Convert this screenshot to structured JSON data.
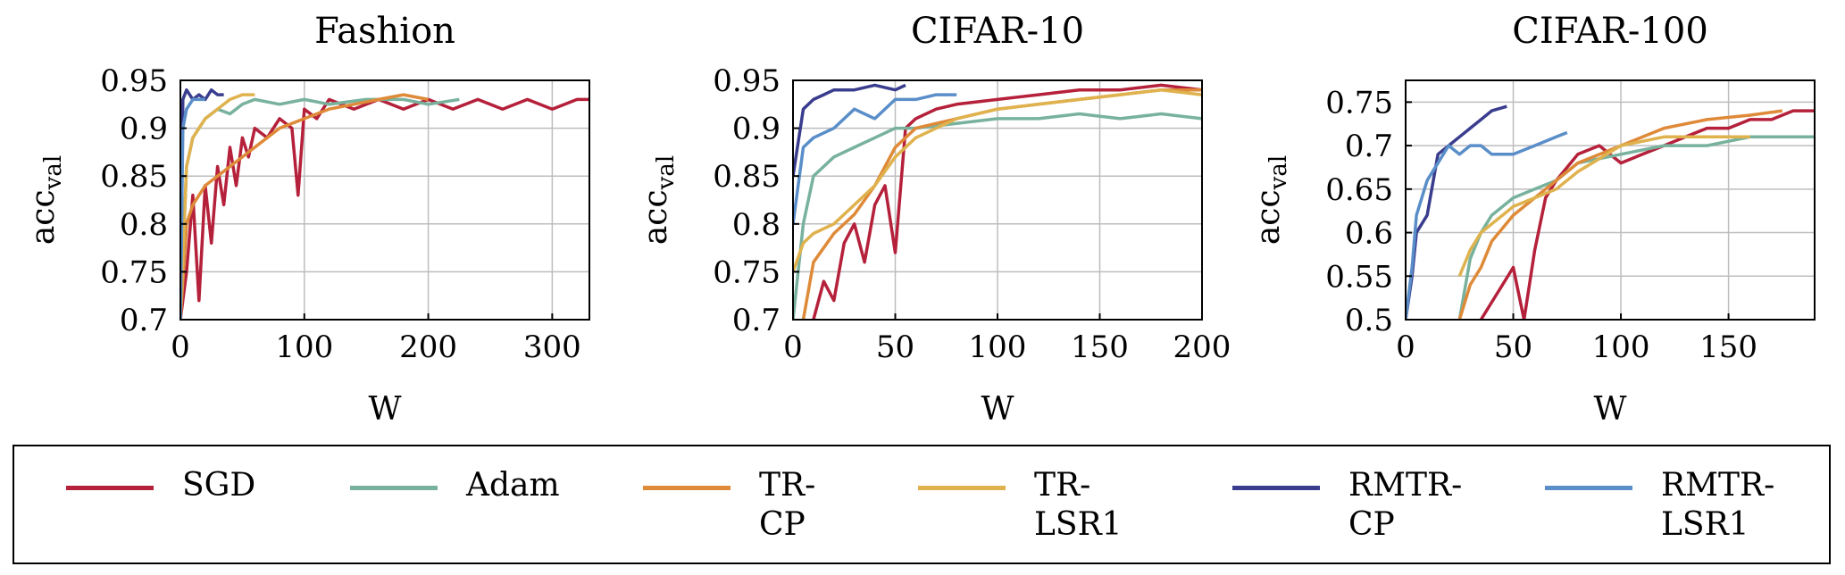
{
  "chart_data": [
    {
      "type": "line",
      "title": "Fashion",
      "xlabel": "W",
      "ylabel": "acc",
      "ylabel_sub": "val",
      "xlim": [
        0,
        330
      ],
      "ylim": [
        0.7,
        0.95
      ],
      "xticks": [
        0,
        100,
        200,
        300
      ],
      "yticks": [
        0.7,
        0.75,
        0.8,
        0.85,
        0.9,
        0.95
      ],
      "ytick_labels": [
        "0.7",
        "0.75",
        "0.8",
        "0.85",
        "0.9",
        "0.95"
      ],
      "grid": true,
      "series": [
        {
          "name": "SGD",
          "x": [
            0,
            5,
            10,
            15,
            20,
            25,
            30,
            35,
            40,
            45,
            50,
            55,
            60,
            70,
            80,
            90,
            95,
            100,
            110,
            120,
            140,
            160,
            180,
            200,
            220,
            240,
            260,
            280,
            300,
            320,
            330
          ],
          "y": [
            0.7,
            0.75,
            0.83,
            0.72,
            0.84,
            0.78,
            0.86,
            0.82,
            0.88,
            0.84,
            0.89,
            0.87,
            0.9,
            0.89,
            0.91,
            0.9,
            0.83,
            0.92,
            0.91,
            0.93,
            0.92,
            0.93,
            0.92,
            0.93,
            0.92,
            0.93,
            0.92,
            0.93,
            0.92,
            0.93,
            0.93
          ]
        },
        {
          "name": "Adam",
          "x": [
            0,
            5,
            10,
            20,
            30,
            40,
            50,
            60,
            80,
            100,
            120,
            150,
            180,
            200,
            225
          ],
          "y": [
            0.7,
            0.86,
            0.89,
            0.91,
            0.92,
            0.915,
            0.925,
            0.93,
            0.925,
            0.93,
            0.925,
            0.93,
            0.93,
            0.925,
            0.93
          ]
        },
        {
          "name": "TR-CP",
          "x": [
            0,
            5,
            10,
            20,
            30,
            40,
            50,
            60,
            80,
            100,
            120,
            140,
            160,
            180,
            200
          ],
          "y": [
            0.7,
            0.8,
            0.82,
            0.84,
            0.85,
            0.86,
            0.87,
            0.88,
            0.9,
            0.91,
            0.92,
            0.925,
            0.93,
            0.935,
            0.93
          ]
        },
        {
          "name": "TR-LSR1",
          "x": [
            0,
            5,
            10,
            15,
            20,
            30,
            40,
            50,
            60
          ],
          "y": [
            0.7,
            0.86,
            0.89,
            0.9,
            0.91,
            0.92,
            0.93,
            0.935,
            0.935
          ]
        },
        {
          "name": "RMTR-CP",
          "x": [
            0,
            2,
            5,
            10,
            15,
            20,
            25,
            30,
            35
          ],
          "y": [
            0.7,
            0.93,
            0.94,
            0.93,
            0.935,
            0.93,
            0.94,
            0.935,
            0.935
          ]
        },
        {
          "name": "RMTR-LSR1",
          "x": [
            0,
            2,
            5,
            10,
            15,
            20
          ],
          "y": [
            0.7,
            0.9,
            0.92,
            0.93,
            0.93,
            0.93
          ]
        }
      ]
    },
    {
      "type": "line",
      "title": "CIFAR-10",
      "xlabel": "W",
      "ylabel": "acc",
      "ylabel_sub": "val",
      "xlim": [
        0,
        200
      ],
      "ylim": [
        0.7,
        0.95
      ],
      "xticks": [
        0,
        50,
        100,
        150,
        200
      ],
      "yticks": [
        0.7,
        0.75,
        0.8,
        0.85,
        0.9,
        0.95
      ],
      "ytick_labels": [
        "0.7",
        "0.75",
        "0.8",
        "0.85",
        "0.9",
        "0.95"
      ],
      "grid": true,
      "series": [
        {
          "name": "SGD",
          "x": [
            10,
            15,
            20,
            25,
            30,
            35,
            40,
            45,
            50,
            55,
            60,
            70,
            80,
            100,
            120,
            140,
            160,
            180,
            200
          ],
          "y": [
            0.7,
            0.74,
            0.72,
            0.78,
            0.8,
            0.76,
            0.82,
            0.84,
            0.77,
            0.9,
            0.91,
            0.92,
            0.925,
            0.93,
            0.935,
            0.94,
            0.94,
            0.945,
            0.94
          ]
        },
        {
          "name": "Adam",
          "x": [
            0,
            5,
            10,
            15,
            20,
            30,
            40,
            50,
            60,
            80,
            100,
            120,
            140,
            160,
            180,
            200
          ],
          "y": [
            0.7,
            0.8,
            0.85,
            0.86,
            0.87,
            0.88,
            0.89,
            0.9,
            0.9,
            0.905,
            0.91,
            0.91,
            0.915,
            0.91,
            0.915,
            0.91
          ]
        },
        {
          "name": "TR-CP",
          "x": [
            5,
            10,
            20,
            30,
            40,
            50,
            60,
            80,
            100,
            120,
            140,
            160,
            180,
            200
          ],
          "y": [
            0.7,
            0.76,
            0.79,
            0.81,
            0.84,
            0.88,
            0.9,
            0.91,
            0.92,
            0.925,
            0.93,
            0.935,
            0.94,
            0.94
          ]
        },
        {
          "name": "TR-LSR1",
          "x": [
            0,
            5,
            10,
            20,
            30,
            40,
            50,
            60,
            80,
            100,
            120,
            140,
            160,
            180,
            200
          ],
          "y": [
            0.75,
            0.78,
            0.79,
            0.8,
            0.82,
            0.84,
            0.87,
            0.89,
            0.91,
            0.92,
            0.925,
            0.93,
            0.935,
            0.94,
            0.935
          ]
        },
        {
          "name": "RMTR-CP",
          "x": [
            0,
            5,
            10,
            15,
            20,
            30,
            40,
            50,
            55
          ],
          "y": [
            0.85,
            0.92,
            0.93,
            0.935,
            0.94,
            0.94,
            0.945,
            0.94,
            0.945
          ]
        },
        {
          "name": "RMTR-LSR1",
          "x": [
            0,
            5,
            10,
            20,
            30,
            40,
            50,
            60,
            70,
            80
          ],
          "y": [
            0.8,
            0.88,
            0.89,
            0.9,
            0.92,
            0.91,
            0.93,
            0.93,
            0.935,
            0.935
          ]
        }
      ]
    },
    {
      "type": "line",
      "title": "CIFAR-100",
      "xlabel": "W",
      "ylabel": "acc",
      "ylabel_sub": "val",
      "xlim": [
        0,
        190
      ],
      "ylim": [
        0.5,
        0.775
      ],
      "xticks": [
        0,
        50,
        100,
        150
      ],
      "yticks": [
        0.5,
        0.55,
        0.6,
        0.65,
        0.7,
        0.75
      ],
      "ytick_labels": [
        "0.5",
        "0.55",
        "0.6",
        "0.65",
        "0.7",
        "0.75"
      ],
      "grid": true,
      "series": [
        {
          "name": "SGD",
          "x": [
            35,
            40,
            45,
            50,
            55,
            60,
            65,
            70,
            80,
            90,
            100,
            110,
            120,
            130,
            140,
            150,
            160,
            170,
            180,
            190
          ],
          "y": [
            0.5,
            0.52,
            0.54,
            0.56,
            0.5,
            0.58,
            0.64,
            0.66,
            0.69,
            0.7,
            0.68,
            0.69,
            0.7,
            0.71,
            0.72,
            0.72,
            0.73,
            0.73,
            0.74,
            0.74
          ]
        },
        {
          "name": "Adam",
          "x": [
            25,
            30,
            35,
            40,
            50,
            60,
            70,
            80,
            100,
            120,
            140,
            160,
            180,
            190
          ],
          "y": [
            0.5,
            0.57,
            0.6,
            0.62,
            0.64,
            0.65,
            0.66,
            0.68,
            0.69,
            0.7,
            0.7,
            0.71,
            0.71,
            0.71
          ]
        },
        {
          "name": "TR-CP",
          "x": [
            25,
            30,
            35,
            40,
            50,
            60,
            70,
            80,
            100,
            120,
            140,
            160,
            175
          ],
          "y": [
            0.5,
            0.54,
            0.56,
            0.59,
            0.62,
            0.64,
            0.66,
            0.68,
            0.7,
            0.72,
            0.73,
            0.735,
            0.74
          ]
        },
        {
          "name": "TR-LSR1",
          "x": [
            25,
            30,
            35,
            40,
            45,
            50,
            60,
            70,
            80,
            100,
            120,
            140,
            160
          ],
          "y": [
            0.55,
            0.58,
            0.6,
            0.61,
            0.62,
            0.63,
            0.64,
            0.65,
            0.67,
            0.7,
            0.71,
            0.71,
            0.71
          ]
        },
        {
          "name": "RMTR-CP",
          "x": [
            0,
            3,
            5,
            10,
            15,
            20,
            25,
            30,
            35,
            40,
            47
          ],
          "y": [
            0.5,
            0.55,
            0.6,
            0.62,
            0.69,
            0.7,
            0.71,
            0.72,
            0.73,
            0.74,
            0.745
          ]
        },
        {
          "name": "RMTR-LSR1",
          "x": [
            0,
            3,
            5,
            10,
            15,
            20,
            25,
            30,
            35,
            40,
            50,
            60,
            70,
            75
          ],
          "y": [
            0.5,
            0.56,
            0.62,
            0.66,
            0.68,
            0.7,
            0.69,
            0.7,
            0.7,
            0.69,
            0.69,
            0.7,
            0.71,
            0.715
          ]
        }
      ]
    }
  ],
  "legend": {
    "placement": "bottom",
    "items": [
      {
        "label": "SGD",
        "color": "#b5203a"
      },
      {
        "label": "Adam",
        "color": "#78b29d"
      },
      {
        "label": "TR-\nCP",
        "color": "#de8a38"
      },
      {
        "label": "TR-\nLSR1",
        "color": "#dfb24e"
      },
      {
        "label": "RMTR-\nCP",
        "color": "#3a3d8e"
      },
      {
        "label": "RMTR-\nLSR1",
        "color": "#5a8ec9"
      }
    ]
  },
  "colors": {
    "SGD": "#b5203a",
    "Adam": "#78b29d",
    "TR-CP": "#de8a38",
    "TR-LSR1": "#dfb24e",
    "RMTR-CP": "#3a3d8e",
    "RMTR-LSR1": "#5a8ec9"
  }
}
